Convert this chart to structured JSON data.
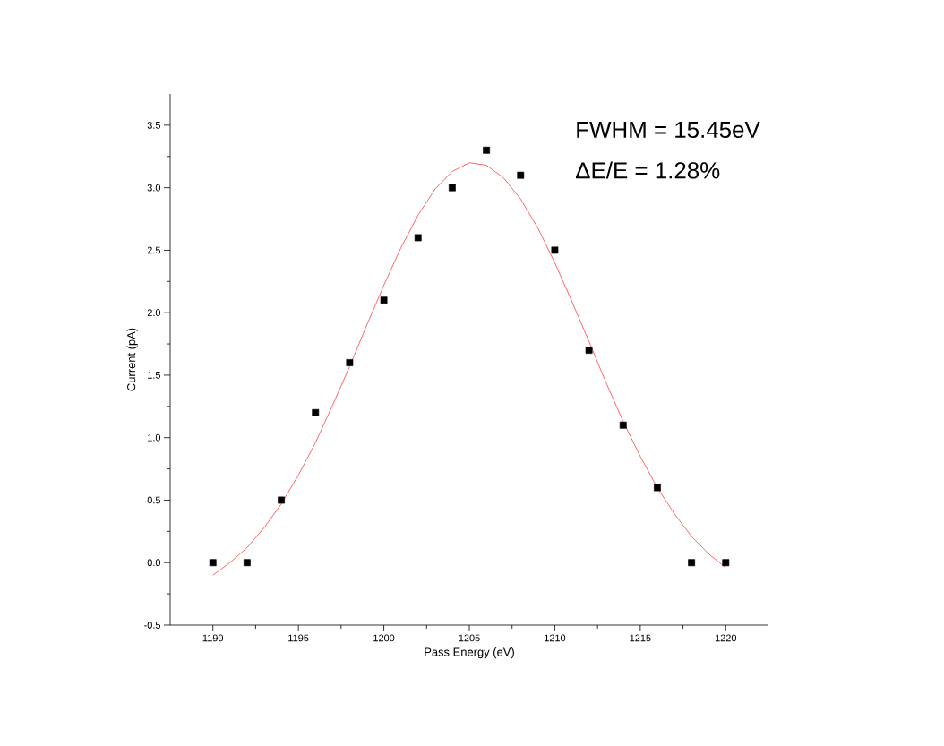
{
  "chart_data": {
    "type": "scatter",
    "xlabel": "Pass Energy (eV)",
    "ylabel": "Current (pA)",
    "xlim": [
      1187.5,
      1222.5
    ],
    "ylim": [
      -0.5,
      3.75
    ],
    "xticks": [
      1190,
      1195,
      1200,
      1205,
      1210,
      1215,
      1220
    ],
    "yticks": [
      -0.5,
      {
        "value": 0,
        "label": "0.0"
      },
      0.5,
      {
        "value": 1,
        "label": "1.0"
      },
      1.5,
      {
        "value": 2,
        "label": "2.0"
      },
      2.5,
      {
        "value": 3,
        "label": "3.0"
      },
      3.5
    ],
    "marker": "square",
    "annotations": [
      "FWHM = 15.45eV",
      "ΔE/E = 1.28%"
    ],
    "series": [
      {
        "type": "scatter",
        "color": "#000000",
        "x": [
          1190,
          1192,
          1194,
          1196,
          1198,
          1200,
          1202,
          1204,
          1206,
          1208,
          1210,
          1212,
          1214,
          1216,
          1218,
          1220
        ],
        "values": [
          0,
          0,
          0.5,
          1.2,
          1.6,
          2.1,
          2.6,
          3.0,
          3.3,
          3.1,
          2.5,
          1.7,
          1.1,
          0.6,
          0,
          0
        ]
      },
      {
        "type": "line",
        "marker": "none",
        "line_style": "solid",
        "color": "#ff0000",
        "x": [
          1190,
          1191,
          1192,
          1193,
          1194,
          1195,
          1196,
          1197,
          1198,
          1199,
          1200,
          1201,
          1202,
          1203,
          1204,
          1205,
          1206,
          1207,
          1208,
          1209,
          1210,
          1211,
          1212,
          1213,
          1214,
          1215,
          1216,
          1217,
          1218,
          1219,
          1220
        ],
        "values": [
          -0.1,
          0.0,
          0.12,
          0.28,
          0.47,
          0.7,
          0.96,
          1.26,
          1.57,
          1.9,
          2.22,
          2.52,
          2.78,
          2.99,
          3.13,
          3.2,
          3.18,
          3.08,
          2.91,
          2.68,
          2.4,
          2.09,
          1.77,
          1.44,
          1.13,
          0.85,
          0.6,
          0.39,
          0.21,
          0.07,
          -0.04
        ]
      }
    ]
  }
}
